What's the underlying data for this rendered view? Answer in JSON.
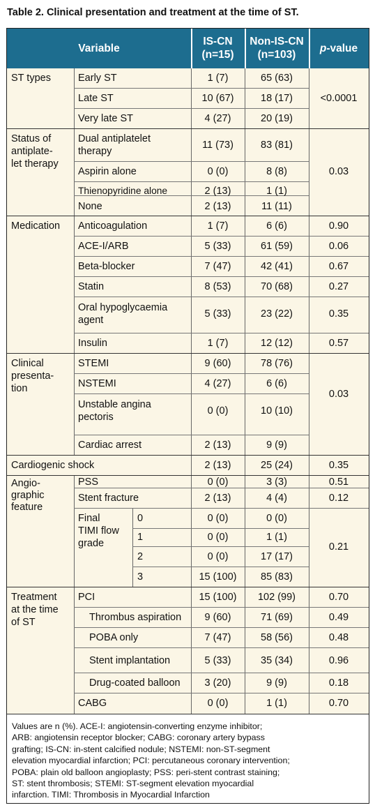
{
  "title": "Table 2. Clinical presentation and treatment at the time of ST.",
  "header": {
    "variable": "Variable",
    "iscn": "IS-CN",
    "iscn_n": "(n=15)",
    "noniscn": "Non-IS-CN",
    "noniscn_n": "(n=103)",
    "pvalue": "-value",
    "pvalue_p": "p"
  },
  "groups": {
    "st_types": "ST types",
    "status_l1": "Status of",
    "status_l2": "antiplate-",
    "status_l3": "let therapy",
    "medication": "Medication",
    "clinical_l1": "Clinical",
    "clinical_l2": "presenta-",
    "clinical_l3": "tion",
    "cardiogenic": "Cardiogenic shock",
    "angio_l1": "Angio-",
    "angio_l2": "graphic",
    "angio_l3": "feature",
    "final_l1": "Final",
    "final_l2": "TIMI flow",
    "final_l3": "grade",
    "treat_l1": "Treatment",
    "treat_l2": "at the time",
    "treat_l3": "of ST"
  },
  "rows": {
    "early": {
      "label": "Early ST",
      "a": "1 (7)",
      "b": "65 (63)"
    },
    "late": {
      "label": "Late ST",
      "a": "10 (67)",
      "b": "18 (17)"
    },
    "verylate": {
      "label": "Very late ST",
      "a": "4 (27)",
      "b": "20 (19)"
    },
    "dapt": {
      "label1": "Dual antiplatelet",
      "label2": "therapy",
      "a": "11 (73)",
      "b": "83 (81)"
    },
    "aspirin": {
      "label": "Aspirin alone",
      "a": "0 (0)",
      "b": "8 (8)"
    },
    "thieno": {
      "label": "Thienopyridine alone",
      "a": "2 (13)",
      "b": "1 (1)"
    },
    "none": {
      "label": "None",
      "a": "2 (13)",
      "b": "11 (11)"
    },
    "anticoag": {
      "label": "Anticoagulation",
      "a": "1 (7)",
      "b": "6 (6)",
      "p": "0.90"
    },
    "acei": {
      "label": "ACE-I/ARB",
      "a": "5 (33)",
      "b": "61 (59)",
      "p": "0.06"
    },
    "beta": {
      "label": "Beta-blocker",
      "a": "7 (47)",
      "b": "42 (41)",
      "p": "0.67"
    },
    "statin": {
      "label": "Statin",
      "a": "8 (53)",
      "b": "70 (68)",
      "p": "0.27"
    },
    "oral": {
      "label1": "Oral hypoglycaemia",
      "label2": "agent",
      "a": "5 (33)",
      "b": "23 (22)",
      "p": "0.35"
    },
    "insulin": {
      "label": "Insulin",
      "a": "1 (7)",
      "b": "12 (12)",
      "p": "0.57"
    },
    "stemi": {
      "label": "STEMI",
      "a": "9 (60)",
      "b": "78 (76)"
    },
    "nstemi": {
      "label": "NSTEMI",
      "a": "4 (27)",
      "b": "6 (6)"
    },
    "unstable": {
      "label1": "Unstable angina",
      "label2": "pectoris",
      "a": "0 (0)",
      "b": "10 (10)"
    },
    "arrest": {
      "label": "Cardiac arrest",
      "a": "2 (13)",
      "b": "9 (9)"
    },
    "shock": {
      "a": "2 (13)",
      "b": "25 (24)",
      "p": "0.35"
    },
    "pss": {
      "label": "PSS",
      "a": "0 (0)",
      "b": "3 (3)",
      "p": "0.51"
    },
    "fracture": {
      "label": "Stent fracture",
      "a": "2 (13)",
      "b": "4 (4)",
      "p": "0.12"
    },
    "timi0": {
      "label": "0",
      "a": "0 (0)",
      "b": "0 (0)"
    },
    "timi1": {
      "label": "1",
      "a": "0 (0)",
      "b": "1 (1)"
    },
    "timi2": {
      "label": "2",
      "a": "0 (0)",
      "b": "17 (17)"
    },
    "timi3": {
      "label": "3",
      "a": "15 (100)",
      "b": "85 (83)"
    },
    "pci": {
      "label": "PCI",
      "a": "15 (100)",
      "b": "102 (99)",
      "p": "0.70"
    },
    "thrombus": {
      "label": "Thrombus aspiration",
      "a": "9 (60)",
      "b": "71 (69)",
      "p": "0.49"
    },
    "poba": {
      "label": "POBA only",
      "a": "7 (47)",
      "b": "58 (56)",
      "p": "0.48"
    },
    "stent": {
      "label": "Stent implantation",
      "a": "5 (33)",
      "b": "35 (34)",
      "p": "0.96"
    },
    "dcb": {
      "label": "Drug-coated balloon",
      "a": "3 (20)",
      "b": "9 (9)",
      "p": "0.18"
    },
    "cabg": {
      "label": "CABG",
      "a": "0 (0)",
      "b": "1 (1)",
      "p": "0.70"
    }
  },
  "pvalues": {
    "st_types": "<0.0001",
    "status": "0.03",
    "clinical": "0.03",
    "timi": "0.21"
  },
  "footnote": {
    "l1": "Values are n (%). ACE-I: angiotensin-converting enzyme inhibitor;",
    "l2": "ARB: angiotensin receptor blocker; CABG: coronary artery bypass",
    "l3": "grafting; IS-CN: in-stent calcified nodule; NSTEMI: non-ST-segment",
    "l4": "elevation myocardial infarction; PCI: percutaneous coronary intervention;",
    "l5": "POBA: plain old balloon angioplasty; PSS: peri-stent contrast staining;",
    "l6": "ST: stent thrombosis; STEMI: ST-segment elevation myocardial",
    "l7": "infarction. TIMI: Thrombosis in Myocardial Infarction"
  },
  "colors": {
    "header_bg": "#1d6d8f",
    "row_shade": "#fbf6e6",
    "border": "#222222"
  }
}
